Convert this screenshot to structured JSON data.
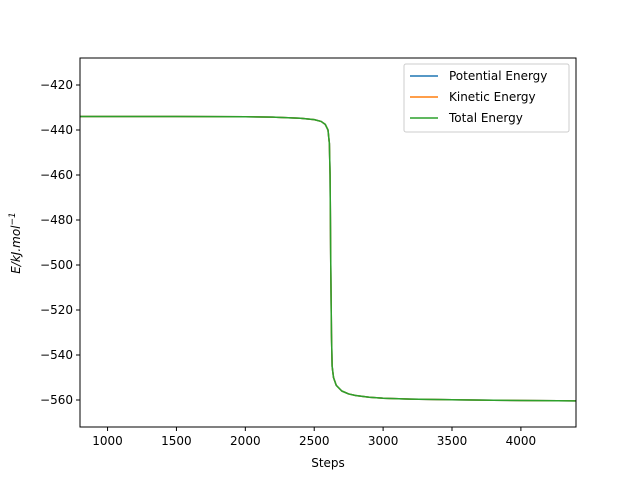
{
  "chart_data": {
    "type": "line",
    "title": "",
    "xlabel": "Steps",
    "ylabel": "E/kJ.mol",
    "ylabel_superscript": "−1",
    "xlim": [
      800,
      4400
    ],
    "ylim": [
      -572,
      -408
    ],
    "xticks": [
      1000,
      1500,
      2000,
      2500,
      3000,
      3500,
      4000
    ],
    "yticks": [
      -560,
      -540,
      -520,
      -500,
      -480,
      -460,
      -440,
      -420
    ],
    "grid": false,
    "legend_position": "top-right",
    "series": [
      {
        "name": "Potential Energy",
        "color": "#1f77b4",
        "x": [
          800,
          1000,
          1500,
          2000,
          2200,
          2400,
          2500,
          2550,
          2580,
          2600,
          2610,
          2615,
          2620,
          2625,
          2630,
          2640,
          2660,
          2700,
          2750,
          2800,
          2900,
          3000,
          3200,
          3500,
          3800,
          4000,
          4400
        ],
        "y": [
          -434,
          -434,
          -434,
          -434.1,
          -434.3,
          -434.8,
          -435.4,
          -436.2,
          -437.5,
          -440,
          -446,
          -460,
          -500,
          -530,
          -545,
          -550,
          -553.5,
          -556,
          -557.3,
          -558,
          -558.8,
          -559.2,
          -559.6,
          -559.9,
          -560.1,
          -560.2,
          -560.4
        ]
      },
      {
        "name": "Kinetic Energy",
        "color": "#ff7f0e",
        "x": [
          800,
          1000,
          1500,
          2000,
          2200,
          2400,
          2500,
          2550,
          2580,
          2600,
          2610,
          2615,
          2620,
          2625,
          2630,
          2640,
          2660,
          2700,
          2750,
          2800,
          2900,
          3000,
          3200,
          3500,
          3800,
          4000,
          4400
        ],
        "y": [
          -434,
          -434,
          -434,
          -434.1,
          -434.3,
          -434.8,
          -435.4,
          -436.2,
          -437.5,
          -440,
          -446,
          -460,
          -500,
          -530,
          -545,
          -550,
          -553.5,
          -556,
          -557.3,
          -558,
          -558.8,
          -559.2,
          -559.6,
          -559.9,
          -560.1,
          -560.2,
          -560.4
        ]
      },
      {
        "name": "Total Energy",
        "color": "#2ca02c",
        "x": [
          800,
          1000,
          1500,
          2000,
          2200,
          2400,
          2500,
          2550,
          2580,
          2600,
          2610,
          2615,
          2620,
          2625,
          2630,
          2640,
          2660,
          2700,
          2750,
          2800,
          2900,
          3000,
          3200,
          3500,
          3800,
          4000,
          4400
        ],
        "y": [
          -434,
          -434,
          -434,
          -434.1,
          -434.3,
          -434.8,
          -435.4,
          -436.2,
          -437.5,
          -440,
          -446,
          -460,
          -500,
          -530,
          -545,
          -550,
          -553.5,
          -556,
          -557.3,
          -558,
          -558.8,
          -559.2,
          -559.6,
          -559.9,
          -560.1,
          -560.2,
          -560.4
        ]
      }
    ]
  }
}
